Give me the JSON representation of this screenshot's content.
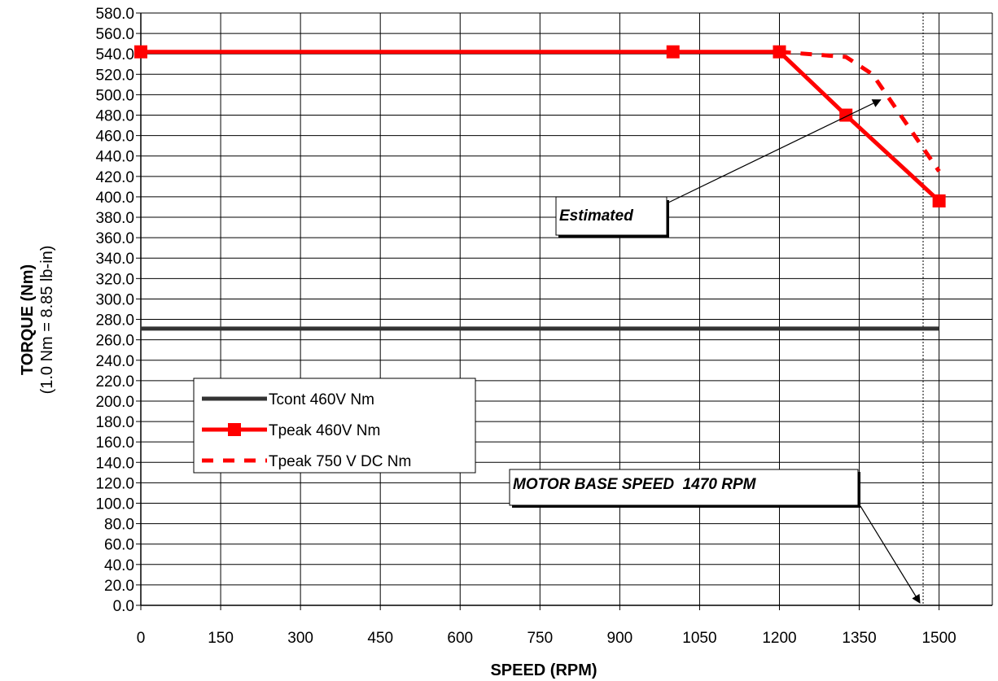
{
  "chart_data": {
    "type": "line",
    "title": "",
    "xlabel": "SPEED (RPM)",
    "ylabel": "TORQUE (Nm)",
    "ylabel_sub": "(1.0 Nm = 8.85 lb-in)",
    "xlim": [
      0,
      1600
    ],
    "ylim": [
      0,
      580
    ],
    "x_ticks": [
      0,
      150,
      300,
      450,
      600,
      750,
      900,
      1050,
      1200,
      1350,
      1500
    ],
    "y_ticks": [
      0,
      20,
      40,
      60,
      80,
      100,
      120,
      140,
      160,
      180,
      200,
      220,
      240,
      260,
      280,
      300,
      320,
      340,
      360,
      380,
      400,
      420,
      440,
      460,
      480,
      500,
      520,
      540,
      560,
      580
    ],
    "y_tick_labels": [
      "0.0",
      "20.0",
      "40.0",
      "60.0",
      "80.0",
      "100.0",
      "120.0",
      "140.0",
      "160.0",
      "180.0",
      "200.0",
      "220.0",
      "240.0",
      "260.0",
      "280.0",
      "300.0",
      "320.0",
      "340.0",
      "360.0",
      "380.0",
      "400.0",
      "420.0",
      "440.0",
      "460.0",
      "480.0",
      "500.0",
      "520.0",
      "540.0",
      "560.0",
      "580.0"
    ],
    "grid": true,
    "legend_position": "lower-left",
    "series": [
      {
        "name": "Tcont 460V Nm",
        "style": "solid",
        "color": "#333333",
        "x": [
          0,
          1500
        ],
        "y": [
          271,
          271
        ]
      },
      {
        "name": "Tpeak 460V Nm",
        "style": "solid-square-markers",
        "color": "#ff0000",
        "x": [
          0,
          1000,
          1200,
          1325,
          1500
        ],
        "y": [
          542,
          542,
          542,
          480,
          396
        ]
      },
      {
        "name": "Tpeak 750 V DC Nm",
        "style": "dashed",
        "color": "#ff0000",
        "x": [
          1200,
          1325,
          1375,
          1500
        ],
        "y": [
          542,
          537,
          520,
          425
        ]
      }
    ],
    "vertical_line": {
      "x": 1470,
      "style": "dotted"
    },
    "annotations": [
      {
        "text": "Estimated",
        "arrow_to": [
          1390,
          495
        ]
      },
      {
        "text": "MOTOR BASE SPEED  1470 RPM",
        "arrow_to": [
          1470,
          0
        ]
      }
    ]
  }
}
